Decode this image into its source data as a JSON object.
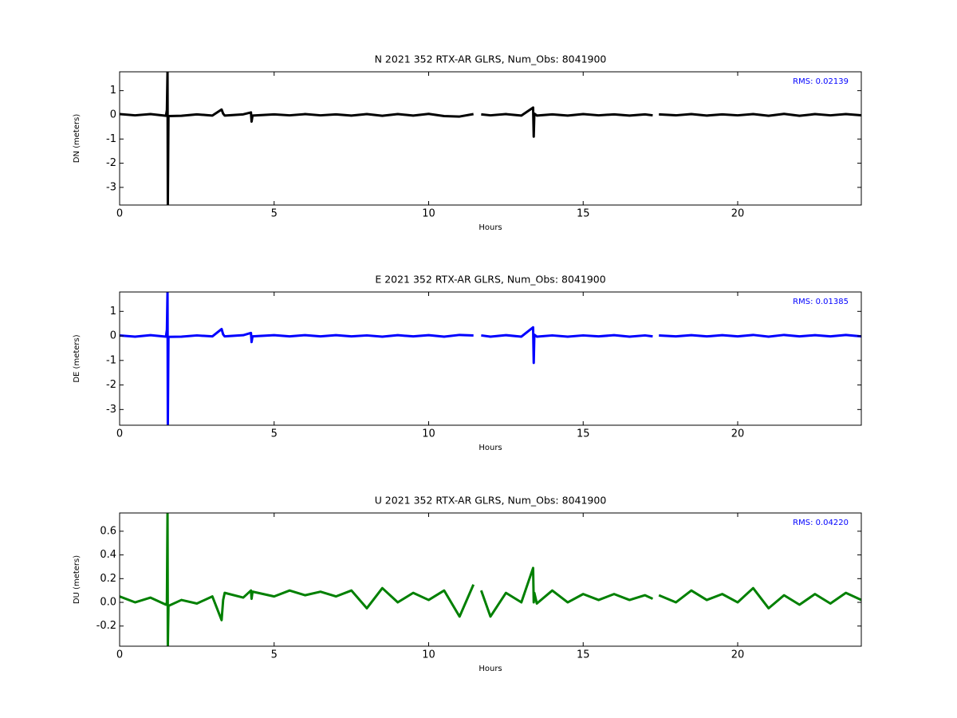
{
  "chart_data": [
    {
      "type": "line",
      "title": "N 2021 352 RTX-AR  GLRS, Num_Obs: 8041900",
      "y_label": "DN (meters)",
      "x_label": "Hours",
      "annotation": "RMS:  0.02139",
      "annotation_color": "#0000ff",
      "color": "#000000",
      "x": [
        0,
        0.5,
        1,
        1.5,
        1.53,
        1.55,
        1.56,
        1.58,
        2,
        2.5,
        3,
        3.3,
        3.35,
        3.4,
        4,
        4.25,
        4.27,
        4.3,
        5,
        5.5,
        6,
        6.5,
        7,
        7.5,
        8,
        8.5,
        9,
        9.5,
        10,
        10.5,
        11,
        11.45,
        11.55,
        11.7,
        12,
        12.5,
        13,
        13.38,
        13.4,
        13.42,
        13.5,
        14,
        14.5,
        15,
        15.5,
        16,
        16.5,
        17,
        17.25,
        17.35,
        17.45,
        18,
        18.5,
        19,
        19.5,
        20,
        20.5,
        21,
        21.5,
        22,
        22.5,
        23,
        23.5,
        24
      ],
      "values": [
        0.03,
        -0.02,
        0.03,
        -0.04,
        0.2,
        1.8,
        -3.7,
        -0.05,
        -0.04,
        0.02,
        -0.03,
        0.22,
        0.05,
        -0.03,
        0.02,
        0.1,
        -0.28,
        -0.03,
        0.02,
        -0.02,
        0.03,
        -0.02,
        0.02,
        -0.03,
        0.03,
        -0.04,
        0.03,
        -0.03,
        0.04,
        -0.05,
        -0.07,
        0.03,
        null,
        0.02,
        -0.02,
        0.03,
        -0.03,
        0.3,
        -0.9,
        0.05,
        -0.03,
        0.02,
        -0.03,
        0.03,
        -0.02,
        0.02,
        -0.03,
        0.02,
        -0.02,
        null,
        0.02,
        -0.02,
        0.03,
        -0.03,
        0.02,
        -0.02,
        0.03,
        -0.04,
        0.04,
        -0.04,
        0.03,
        -0.02,
        0.03,
        -0.02
      ],
      "xlim": [
        0,
        24
      ],
      "xticks": [
        0,
        5,
        10,
        15,
        20
      ],
      "ylim": [
        -3.73,
        1.78
      ],
      "yticks": [
        -3,
        -2,
        -1,
        0,
        1
      ]
    },
    {
      "type": "line",
      "title": "E 2021 352 RTX-AR  GLRS, Num_Obs: 8041900",
      "y_label": "DE (meters)",
      "x_label": "Hours",
      "annotation": "RMS:  0.01385",
      "annotation_color": "#0000ff",
      "color": "#0000ff",
      "x": [
        0,
        0.5,
        1,
        1.5,
        1.53,
        1.55,
        1.56,
        1.58,
        2,
        2.5,
        3,
        3.3,
        3.35,
        3.4,
        4,
        4.25,
        4.27,
        4.3,
        5,
        5.5,
        6,
        6.5,
        7,
        7.5,
        8,
        8.5,
        9,
        9.5,
        10,
        10.5,
        11,
        11.45,
        11.55,
        11.7,
        12,
        12.5,
        13,
        13.38,
        13.4,
        13.42,
        13.5,
        14,
        14.5,
        15,
        15.5,
        16,
        16.5,
        17,
        17.25,
        17.35,
        17.45,
        18,
        18.5,
        19,
        19.5,
        20,
        20.5,
        21,
        21.5,
        22,
        22.5,
        23,
        23.5,
        24
      ],
      "values": [
        0.02,
        -0.03,
        0.03,
        -0.03,
        0.25,
        1.8,
        -3.6,
        -0.04,
        -0.03,
        0.02,
        -0.02,
        0.28,
        0.06,
        -0.02,
        0.03,
        0.12,
        -0.25,
        -0.02,
        0.03,
        -0.02,
        0.03,
        -0.02,
        0.03,
        -0.02,
        0.02,
        -0.03,
        0.03,
        -0.02,
        0.03,
        -0.03,
        0.04,
        0.02,
        null,
        0.02,
        -0.03,
        0.03,
        -0.03,
        0.35,
        -1.1,
        0.05,
        -0.03,
        0.02,
        -0.03,
        0.02,
        -0.02,
        0.03,
        -0.03,
        0.02,
        -0.02,
        null,
        0.02,
        -0.02,
        0.03,
        -0.02,
        0.03,
        -0.02,
        0.04,
        -0.03,
        0.04,
        -0.02,
        0.03,
        -0.02,
        0.04,
        -0.02
      ],
      "xlim": [
        0,
        24
      ],
      "xticks": [
        0,
        5,
        10,
        15,
        20
      ],
      "ylim": [
        -3.64,
        1.79
      ],
      "yticks": [
        -3,
        -2,
        -1,
        0,
        1
      ]
    },
    {
      "type": "line",
      "title": "U 2021 352 RTX-AR  GLRS, Num_Obs: 8041900",
      "y_label": "DU (meters)",
      "x_label": "Hours",
      "annotation": "RMS:  0.04220",
      "annotation_color": "#0000ff",
      "color": "#008000",
      "x": [
        0,
        0.5,
        1,
        1.5,
        1.53,
        1.55,
        1.56,
        1.58,
        2,
        2.5,
        3,
        3.3,
        3.35,
        3.4,
        4,
        4.25,
        4.27,
        4.3,
        5,
        5.5,
        6,
        6.5,
        7,
        7.5,
        8,
        8.5,
        9,
        9.5,
        10,
        10.5,
        11,
        11.45,
        11.55,
        11.7,
        12,
        12.5,
        13,
        13.38,
        13.4,
        13.42,
        13.5,
        14,
        14.5,
        15,
        15.5,
        16,
        16.5,
        17,
        17.25,
        17.35,
        17.45,
        18,
        18.5,
        19,
        19.5,
        20,
        20.5,
        21,
        21.5,
        22,
        22.5,
        23,
        23.5,
        24
      ],
      "values": [
        0.05,
        0.0,
        0.04,
        -0.02,
        0.0,
        0.754,
        -0.37,
        -0.03,
        0.02,
        -0.01,
        0.05,
        -0.15,
        0.02,
        0.08,
        0.04,
        0.1,
        0.03,
        0.09,
        0.05,
        0.1,
        0.06,
        0.09,
        0.05,
        0.1,
        -0.05,
        0.12,
        0.0,
        0.08,
        0.02,
        0.1,
        -0.12,
        0.15,
        null,
        0.1,
        -0.12,
        0.08,
        0.0,
        0.29,
        0.0,
        0.08,
        -0.01,
        0.1,
        0.0,
        0.07,
        0.02,
        0.07,
        0.02,
        0.06,
        0.03,
        null,
        0.06,
        0.0,
        0.1,
        0.02,
        0.07,
        0.0,
        0.12,
        -0.05,
        0.06,
        -0.02,
        0.07,
        -0.01,
        0.08,
        0.02
      ],
      "xlim": [
        0,
        24
      ],
      "xticks": [
        0,
        5,
        10,
        15,
        20
      ],
      "ylim": [
        -0.37,
        0.754
      ],
      "yticks": [
        -0.2,
        {
          "value": 0,
          "label": "0.0"
        },
        0.2,
        0.4,
        0.6
      ]
    }
  ]
}
